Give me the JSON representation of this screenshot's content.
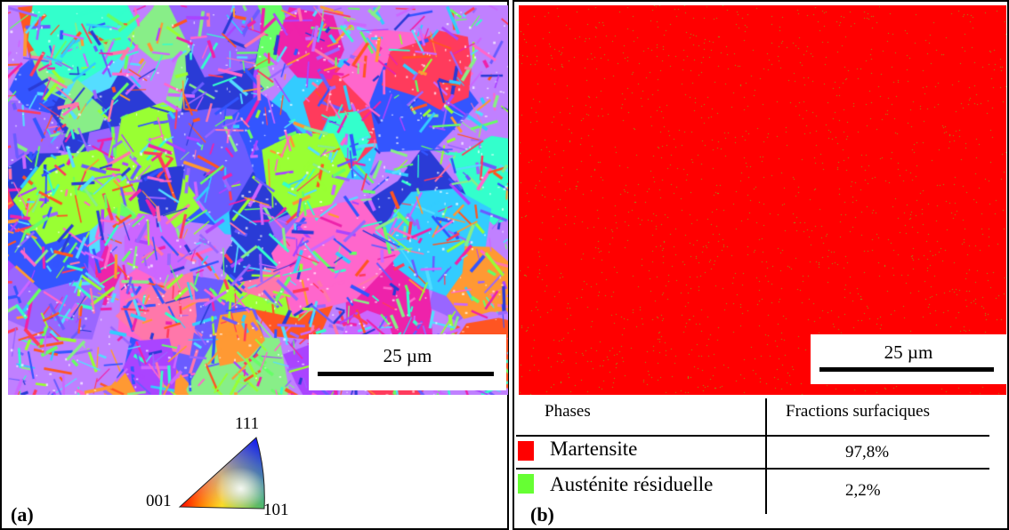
{
  "panel_a": {
    "label": "(a)",
    "scale_bar": "25 µm",
    "ipf_key": {
      "corner_top": "111",
      "corner_left": "001",
      "corner_right": "101"
    }
  },
  "panel_b": {
    "label": "(b)",
    "scale_bar": "25 µm",
    "table": {
      "headers": [
        "Phases",
        "Fractions surfaciques"
      ],
      "rows": [
        {
          "phase": "Martensite",
          "fraction": "97,8%",
          "color": "#ff0000"
        },
        {
          "phase": "Austénite résiduelle",
          "fraction": "2,2%",
          "color": "#66ff33"
        }
      ]
    }
  },
  "colors": {
    "martensite": "#ff0000",
    "austenite": "#66ff33",
    "dots": "#8ca21c"
  }
}
